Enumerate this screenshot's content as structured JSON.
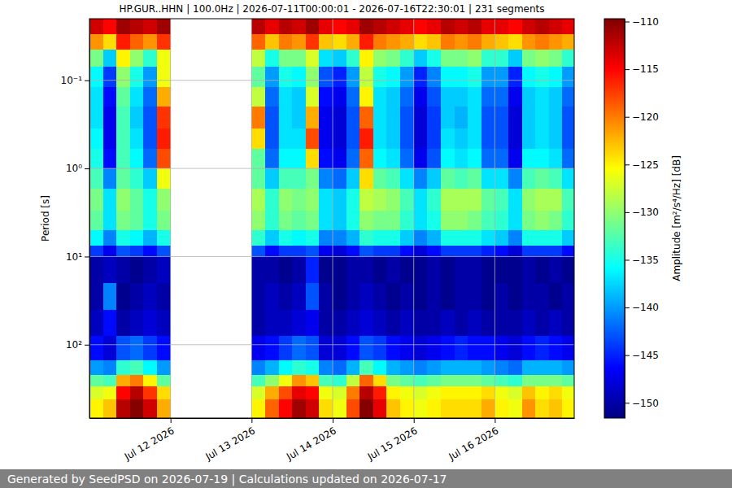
{
  "chart_data": {
    "type": "heatmap",
    "title": "HP.GUR..HHN | 100.0Hz | 2026-07-11T00:00:01 - 2026-07-16T22:30:01 | 231 segments",
    "footer": "Generated by SeedPSD on 2026-07-19 | Calculations updated on 2026-07-17",
    "y_label": "Period [s]",
    "log": "y",
    "grid": true,
    "color": "jet",
    "xlim": [
      "2026-07-11T00:00",
      "2026-07-16T23:30"
    ],
    "xticks": [
      {
        "value": "2026-07-12T00:00",
        "label": "Jul 12 2026"
      },
      {
        "value": "2026-07-13T00:00",
        "label": "Jul 13 2026"
      },
      {
        "value": "2026-07-14T00:00",
        "label": "Jul 14 2026"
      },
      {
        "value": "2026-07-15T00:00",
        "label": "Jul 15 2026"
      },
      {
        "value": "2026-07-16T00:00",
        "label": "Jul 16 2026"
      }
    ],
    "ylim": [
      0.02,
      680
    ],
    "yticks": [
      {
        "value": 0.1,
        "label": "10⁻¹"
      },
      {
        "value": 1,
        "label": "10⁰"
      },
      {
        "value": 10,
        "label": "10¹"
      },
      {
        "value": 100,
        "label": "10²"
      }
    ],
    "x_bins": [
      "2026-07-11T00:00",
      "2026-07-11T04:00",
      "2026-07-11T08:00",
      "2026-07-11T12:00",
      "2026-07-11T16:00",
      "2026-07-11T20:00",
      "2026-07-12T00:00",
      "2026-07-12T04:00",
      "2026-07-12T08:00",
      "2026-07-12T12:00",
      "2026-07-12T16:00",
      "2026-07-12T20:00",
      "2026-07-13T00:00",
      "2026-07-13T04:00",
      "2026-07-13T08:00",
      "2026-07-13T12:00",
      "2026-07-13T16:00",
      "2026-07-13T20:00",
      "2026-07-14T00:00",
      "2026-07-14T04:00",
      "2026-07-14T08:00",
      "2026-07-14T12:00",
      "2026-07-14T16:00",
      "2026-07-14T20:00",
      "2026-07-15T00:00",
      "2026-07-15T04:00",
      "2026-07-15T08:00",
      "2026-07-15T12:00",
      "2026-07-15T16:00",
      "2026-07-15T20:00",
      "2026-07-16T00:00",
      "2026-07-16T04:00",
      "2026-07-16T08:00",
      "2026-07-16T12:00",
      "2026-07-16T16:00",
      "2026-07-16T20:00",
      "2026-07-16T23:30"
    ],
    "y_bins": [
      0.02,
      0.03,
      0.045,
      0.07,
      0.12,
      0.2,
      0.35,
      0.6,
      1,
      1.7,
      3,
      5,
      7.5,
      10,
      20,
      40,
      80,
      150,
      220,
      300,
      420,
      680
    ],
    "values": [
      [
        -113,
        -115,
        -111,
        -112,
        -113,
        -111,
        null,
        null,
        null,
        null,
        null,
        null,
        -112,
        -114,
        -112,
        -113,
        -111,
        -114,
        -115,
        -114,
        -111,
        -112,
        -113,
        -114,
        -115,
        -114,
        -112,
        -113,
        -112,
        -114,
        -114,
        -115,
        -113,
        -112,
        -113,
        -114
      ],
      [
        -121,
        -124,
        -116,
        -119,
        -121,
        -117,
        null,
        null,
        null,
        null,
        null,
        null,
        -119,
        -123,
        -120,
        -121,
        -117,
        -123,
        -124,
        -122,
        -116,
        -120,
        -121,
        -122,
        -124,
        -123,
        -120,
        -121,
        -120,
        -122,
        -123,
        -124,
        -121,
        -120,
        -121,
        -122
      ],
      [
        -131,
        -138,
        -125,
        -130,
        -134,
        -126,
        null,
        null,
        null,
        null,
        null,
        null,
        -128,
        -135,
        -131,
        -131,
        -127,
        -137,
        -138,
        -134,
        -125,
        -130,
        -131,
        -134,
        -138,
        -135,
        -131,
        -131,
        -130,
        -134,
        -134,
        -138,
        -131,
        -130,
        -131,
        -134
      ],
      [
        -136,
        -144,
        -130,
        -135,
        -140,
        -126,
        null,
        null,
        null,
        null,
        null,
        null,
        -132,
        -140,
        -135,
        -136,
        -130,
        -143,
        -145,
        -140,
        -128,
        -135,
        -136,
        -140,
        -145,
        -141,
        -136,
        -136,
        -135,
        -140,
        -140,
        -145,
        -136,
        -135,
        -136,
        -140
      ],
      [
        -137,
        -146,
        -132,
        -137,
        -142,
        -122,
        null,
        null,
        null,
        null,
        null,
        null,
        -128,
        -142,
        -137,
        -138,
        -127,
        -146,
        -147,
        -142,
        -125,
        -137,
        -138,
        -142,
        -147,
        -143,
        -138,
        -138,
        -137,
        -142,
        -142,
        -147,
        -138,
        -137,
        -138,
        -142
      ],
      [
        -137,
        -147,
        -133,
        -138,
        -143,
        -117,
        null,
        null,
        null,
        null,
        null,
        null,
        -120,
        -143,
        -137,
        -138,
        -122,
        -147,
        -148,
        -143,
        -119,
        -137,
        -138,
        -143,
        -148,
        -144,
        -138,
        -139,
        -137,
        -143,
        -143,
        -148,
        -138,
        -137,
        -138,
        -143
      ],
      [
        -136,
        -147,
        -133,
        -137,
        -143,
        -116,
        null,
        null,
        null,
        null,
        null,
        null,
        -124,
        -143,
        -137,
        -137,
        -118,
        -147,
        -148,
        -143,
        -116,
        -137,
        -138,
        -143,
        -148,
        -144,
        -137,
        -138,
        -137,
        -143,
        -143,
        -148,
        -138,
        -137,
        -138,
        -143
      ],
      [
        -135,
        -146,
        -133,
        -136,
        -142,
        -118,
        null,
        null,
        null,
        null,
        null,
        null,
        -132,
        -142,
        -136,
        -136,
        -124,
        -146,
        -147,
        -142,
        -119,
        -136,
        -137,
        -142,
        -147,
        -143,
        -136,
        -137,
        -136,
        -142,
        -142,
        -147,
        -136,
        -136,
        -137,
        -142
      ],
      [
        -133,
        -141,
        -132,
        -134,
        -138,
        -126,
        null,
        null,
        null,
        null,
        null,
        null,
        -132,
        -138,
        -133,
        -133,
        -131,
        -141,
        -142,
        -138,
        -124,
        -132,
        -133,
        -137,
        -141,
        -138,
        -132,
        -133,
        -132,
        -137,
        -137,
        -141,
        -133,
        -132,
        -133,
        -137
      ],
      [
        -131,
        -137,
        -130,
        -132,
        -135,
        -130,
        null,
        null,
        null,
        null,
        null,
        null,
        -129,
        -134,
        -130,
        -131,
        -130,
        -137,
        -138,
        -135,
        -128,
        -129,
        -130,
        -133,
        -137,
        -134,
        -129,
        -129,
        -129,
        -132,
        -133,
        -137,
        -130,
        -129,
        -129,
        -133
      ],
      [
        -132,
        -137,
        -131,
        -132,
        -135,
        -131,
        null,
        null,
        null,
        null,
        null,
        null,
        -130,
        -134,
        -131,
        -132,
        -131,
        -137,
        -138,
        -135,
        -130,
        -131,
        -131,
        -134,
        -137,
        -135,
        -130,
        -130,
        -131,
        -133,
        -134,
        -137,
        -131,
        -130,
        -131,
        -134
      ],
      [
        -136,
        -141,
        -135,
        -136,
        -139,
        -135,
        null,
        null,
        null,
        null,
        null,
        null,
        -134,
        -138,
        -135,
        -136,
        -135,
        -141,
        -141,
        -139,
        -134,
        -135,
        -135,
        -138,
        -141,
        -139,
        -135,
        -135,
        -135,
        -137,
        -138,
        -141,
        -135,
        -135,
        -135,
        -138
      ],
      [
        -144,
        -147,
        -143,
        -144,
        -146,
        -143,
        null,
        null,
        null,
        null,
        null,
        null,
        -143,
        -146,
        -144,
        -144,
        -143,
        -147,
        -148,
        -146,
        -143,
        -144,
        -144,
        -146,
        -148,
        -146,
        -144,
        -144,
        -144,
        -145,
        -146,
        -148,
        -144,
        -144,
        -144,
        -146
      ],
      [
        -150,
        -149,
        -150,
        -151,
        -150,
        -149,
        null,
        null,
        null,
        null,
        null,
        null,
        -150,
        -150,
        -151,
        -150,
        -145,
        -151,
        -151,
        -150,
        -150,
        -151,
        -150,
        -151,
        -151,
        -150,
        -151,
        -150,
        -150,
        -151,
        -151,
        -151,
        -150,
        -151,
        -150,
        -151
      ],
      [
        -150,
        -141,
        -151,
        -150,
        -149,
        -150,
        null,
        null,
        null,
        null,
        null,
        null,
        -150,
        -149,
        -150,
        -149,
        -143,
        -150,
        -151,
        -150,
        -149,
        -150,
        -151,
        -150,
        -151,
        -150,
        -151,
        -150,
        -150,
        -151,
        -150,
        -151,
        -150,
        -150,
        -151,
        -150
      ],
      [
        -149,
        -146,
        -150,
        -149,
        -148,
        -149,
        null,
        null,
        null,
        null,
        null,
        null,
        -150,
        -149,
        -149,
        -148,
        -147,
        -150,
        -150,
        -149,
        -148,
        -149,
        -150,
        -149,
        -150,
        -150,
        -149,
        -150,
        -149,
        -150,
        -150,
        -150,
        -149,
        -150,
        -149,
        -150
      ],
      [
        -146,
        -148,
        -143,
        -142,
        -144,
        -146,
        null,
        null,
        null,
        null,
        null,
        null,
        -147,
        -146,
        -144,
        -142,
        -143,
        -148,
        -148,
        -146,
        -143,
        -144,
        -146,
        -147,
        -148,
        -147,
        -146,
        -145,
        -146,
        -146,
        -147,
        -148,
        -146,
        -145,
        -146,
        -147
      ],
      [
        -140,
        -141,
        -134,
        -133,
        -136,
        -140,
        null,
        null,
        null,
        null,
        null,
        null,
        -141,
        -139,
        -136,
        -134,
        -135,
        -141,
        -142,
        -139,
        -133,
        -136,
        -139,
        -140,
        -141,
        -140,
        -139,
        -139,
        -139,
        -140,
        -141,
        -142,
        -139,
        -139,
        -139,
        -140
      ],
      [
        -132,
        -133,
        -122,
        -120,
        -125,
        -132,
        null,
        null,
        null,
        null,
        null,
        null,
        -133,
        -130,
        -126,
        -121,
        -123,
        -133,
        -134,
        -128,
        -119,
        -124,
        -131,
        -132,
        -133,
        -132,
        -131,
        -131,
        -131,
        -132,
        -133,
        -134,
        -131,
        -131,
        -131,
        -132
      ],
      [
        -127,
        -126,
        -115,
        -112,
        -117,
        -124,
        null,
        null,
        null,
        null,
        null,
        null,
        -127,
        -122,
        -118,
        -114,
        -115,
        -126,
        -127,
        -120,
        -112,
        -116,
        -125,
        -126,
        -127,
        -126,
        -125,
        -125,
        -125,
        -124,
        -126,
        -127,
        -123,
        -125,
        -124,
        -126
      ],
      [
        -125,
        -123,
        -112,
        -110,
        -113,
        -122,
        null,
        null,
        null,
        null,
        null,
        null,
        -125,
        -119,
        -115,
        -111,
        -113,
        -124,
        -126,
        -118,
        -110,
        -114,
        -123,
        -125,
        -126,
        -125,
        -124,
        -124,
        -124,
        -122,
        -125,
        -126,
        -121,
        -124,
        -123,
        -125
      ]
    ],
    "colorbar": {
      "label": "Amplitude [m²/s⁴/Hz] [dB]",
      "range": [
        -151.6,
        -109.7
      ],
      "ticks": [
        -110,
        -115,
        -120,
        -125,
        -130,
        -135,
        -140,
        -145,
        -150
      ]
    }
  }
}
